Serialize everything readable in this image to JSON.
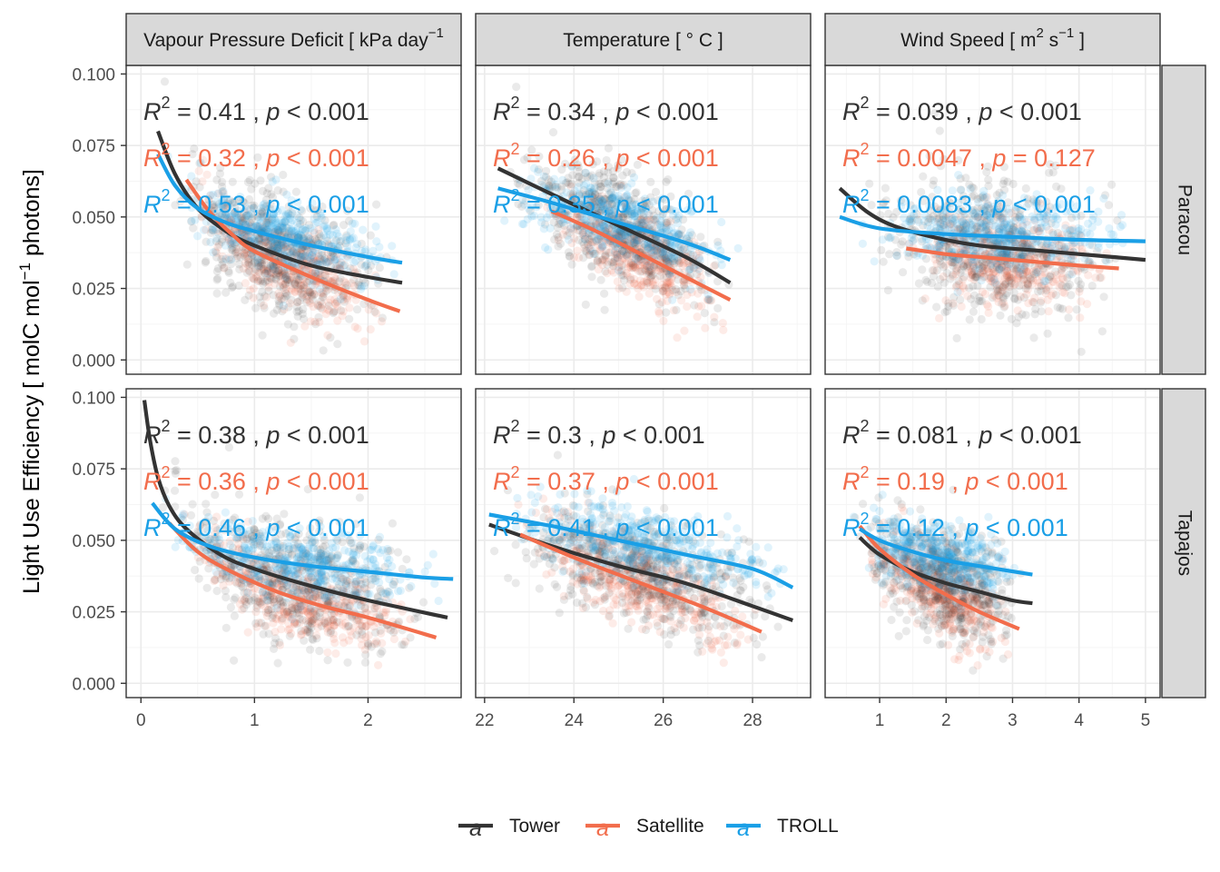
{
  "figure": {
    "ylabel_main": "Light Use Efficiency [ molC mol",
    "ylabel_sup": "−1",
    "ylabel_tail": " photons]",
    "legend": [
      {
        "key": "Tower",
        "label": "Tower",
        "glyph": "a"
      },
      {
        "key": "Satellite",
        "label": "Satellite",
        "glyph": "a"
      },
      {
        "key": "TROLL",
        "label": "TROLL",
        "glyph": "a"
      }
    ]
  },
  "colors": {
    "Tower": "#333333",
    "Satellite": "#f26d4c",
    "TROLL": "#1a9fe6",
    "strip": "#d9d9d9",
    "grid_major": "#ebebeb",
    "grid_minor": "#f5f5f5",
    "border": "#333333",
    "tick_text": "#4d4d4d"
  },
  "columns": [
    {
      "strip_main": "Vapour Pressure Deficit [ kPa day",
      "strip_sup": "−1",
      "strip_tail": "",
      "xlim": [
        -0.13,
        2.82
      ],
      "xticks": [
        0,
        1,
        2
      ],
      "xtick_labels": [
        "0",
        "1",
        "2"
      ],
      "xminor": [
        0.5,
        1.5,
        2.5
      ]
    },
    {
      "strip_main": "Temperature [ ° C ]",
      "strip_sup": "",
      "strip_tail": "",
      "xlim": [
        21.8,
        29.3
      ],
      "xticks": [
        22,
        24,
        26,
        28
      ],
      "xtick_labels": [
        "22",
        "24",
        "26",
        "28"
      ],
      "xminor": [
        23,
        25,
        27,
        29
      ]
    },
    {
      "strip_main": "Wind Speed [ m",
      "strip_sup": "2",
      "strip_tail": " s",
      "strip_sup2": "−1",
      "strip_tail2": " ]",
      "xlim": [
        0.18,
        5.22
      ],
      "xticks": [
        1,
        2,
        3,
        4,
        5
      ],
      "xtick_labels": [
        "1",
        "2",
        "3",
        "4",
        "5"
      ],
      "xminor": [
        0.5,
        1.5,
        2.5,
        3.5,
        4.5
      ]
    }
  ],
  "rows": [
    {
      "strip": "Paracou"
    },
    {
      "strip": "Tapajos"
    }
  ],
  "chart_data": {
    "type": "scatter",
    "facets": "rows = site, columns = driver",
    "ylim": [
      -0.005,
      0.103
    ],
    "yticks": [
      0.0,
      0.025,
      0.05,
      0.075,
      0.1
    ],
    "ytick_labels": [
      "0.000",
      "0.025",
      "0.050",
      "0.075",
      "0.100"
    ],
    "series_names": [
      "Tower",
      "Satellite",
      "TROLL"
    ],
    "panels": [
      {
        "row": 0,
        "col": 0,
        "annotations": [
          {
            "series": "Tower",
            "r2": "0.41",
            "p": "< 0.001"
          },
          {
            "series": "Satellite",
            "r2": "0.32",
            "p": "< 0.001"
          },
          {
            "series": "TROLL",
            "r2": "0.53",
            "p": "< 0.001"
          }
        ],
        "fits": [
          {
            "series": "Tower",
            "x": [
              0.15,
              0.3,
              0.5,
              0.75,
              1.0,
              1.5,
              2.0,
              2.3
            ],
            "y": [
              0.08,
              0.065,
              0.053,
              0.045,
              0.04,
              0.033,
              0.029,
              0.027
            ]
          },
          {
            "series": "Satellite",
            "x": [
              0.4,
              0.6,
              0.8,
              1.0,
              1.5,
              2.0,
              2.28
            ],
            "y": [
              0.063,
              0.052,
              0.044,
              0.038,
              0.029,
              0.021,
              0.017
            ]
          },
          {
            "series": "TROLL",
            "x": [
              0.15,
              0.3,
              0.5,
              0.75,
              1.0,
              1.5,
              2.0,
              2.3
            ],
            "y": [
              0.072,
              0.061,
              0.053,
              0.048,
              0.045,
              0.04,
              0.036,
              0.034
            ]
          }
        ],
        "clouds": [
          {
            "series": "Tower",
            "x": [
              0.15,
              2.3
            ],
            "center": "fit",
            "sd": 0.011
          },
          {
            "series": "Satellite",
            "x": [
              0.3,
              2.3
            ],
            "center": "fit",
            "sd": 0.007
          },
          {
            "series": "TROLL",
            "x": [
              0.15,
              2.35
            ],
            "center": "fit",
            "sd": 0.006
          }
        ]
      },
      {
        "row": 0,
        "col": 1,
        "annotations": [
          {
            "series": "Tower",
            "r2": "0.34",
            "p": "< 0.001"
          },
          {
            "series": "Satellite",
            "r2": "0.26",
            "p": "< 0.001"
          },
          {
            "series": "TROLL",
            "r2": "0.35",
            "p": "< 0.001"
          }
        ],
        "fits": [
          {
            "series": "Tower",
            "x": [
              22.3,
              23.5,
              25.0,
              26.5,
              27.5
            ],
            "y": [
              0.067,
              0.058,
              0.047,
              0.036,
              0.027
            ]
          },
          {
            "series": "Satellite",
            "x": [
              23.5,
              24.5,
              25.5,
              26.5,
              27.5
            ],
            "y": [
              0.052,
              0.045,
              0.037,
              0.029,
              0.021
            ]
          },
          {
            "series": "TROLL",
            "x": [
              22.3,
              23.5,
              25.0,
              26.5,
              27.5
            ],
            "y": [
              0.06,
              0.055,
              0.048,
              0.041,
              0.035
            ]
          }
        ],
        "clouds": [
          {
            "series": "Tower",
            "x": [
              22.3,
              27.7
            ],
            "center": "fit",
            "sd": 0.01
          },
          {
            "series": "Satellite",
            "x": [
              23.2,
              27.6
            ],
            "center": "fit",
            "sd": 0.007
          },
          {
            "series": "TROLL",
            "x": [
              22.3,
              27.8
            ],
            "center": "fit",
            "sd": 0.006
          }
        ]
      },
      {
        "row": 0,
        "col": 2,
        "annotations": [
          {
            "series": "Tower",
            "r2": "0.039",
            "p": "< 0.001"
          },
          {
            "series": "Satellite",
            "r2": "0.0047",
            "p": "= 0.127"
          },
          {
            "series": "TROLL",
            "r2": "0.0083",
            "p": "< 0.001"
          }
        ],
        "fits": [
          {
            "series": "Tower",
            "x": [
              0.4,
              0.8,
              1.2,
              1.8,
              2.5,
              3.5,
              4.5,
              5.0
            ],
            "y": [
              0.06,
              0.052,
              0.047,
              0.043,
              0.04,
              0.038,
              0.036,
              0.035
            ]
          },
          {
            "series": "Satellite",
            "x": [
              1.4,
              2.0,
              2.5,
              3.0,
              3.5,
              4.0,
              4.6
            ],
            "y": [
              0.039,
              0.037,
              0.036,
              0.035,
              0.034,
              0.033,
              0.032
            ]
          },
          {
            "series": "TROLL",
            "x": [
              0.4,
              1.0,
              2.0,
              3.0,
              4.0,
              5.0
            ],
            "y": [
              0.05,
              0.046,
              0.044,
              0.043,
              0.042,
              0.0415
            ]
          }
        ],
        "clouds": [
          {
            "series": "Tower",
            "x": [
              0.6,
              4.8
            ],
            "center": "fit",
            "sd": 0.012
          },
          {
            "series": "Satellite",
            "x": [
              1.3,
              4.6
            ],
            "center": "fit",
            "sd": 0.008
          },
          {
            "series": "TROLL",
            "x": [
              0.5,
              5.0
            ],
            "center": "fit",
            "sd": 0.007
          }
        ]
      },
      {
        "row": 1,
        "col": 0,
        "annotations": [
          {
            "series": "Tower",
            "r2": "0.38",
            "p": "< 0.001"
          },
          {
            "series": "Satellite",
            "r2": "0.36",
            "p": "< 0.001"
          },
          {
            "series": "TROLL",
            "r2": "0.46",
            "p": "< 0.001"
          }
        ],
        "fits": [
          {
            "series": "Tower",
            "x": [
              0.03,
              0.08,
              0.15,
              0.25,
              0.4,
              0.7,
              1.0,
              1.5,
              2.0,
              2.7
            ],
            "y": [
              0.099,
              0.085,
              0.072,
              0.062,
              0.054,
              0.045,
              0.04,
              0.034,
              0.029,
              0.023
            ]
          },
          {
            "series": "Satellite",
            "x": [
              0.25,
              0.5,
              0.8,
              1.2,
              1.6,
              2.0,
              2.6
            ],
            "y": [
              0.056,
              0.046,
              0.039,
              0.032,
              0.027,
              0.023,
              0.016
            ]
          },
          {
            "series": "TROLL",
            "x": [
              0.1,
              0.3,
              0.6,
              1.0,
              1.5,
              2.0,
              2.5,
              2.75
            ],
            "y": [
              0.063,
              0.054,
              0.048,
              0.044,
              0.041,
              0.039,
              0.037,
              0.0365
            ]
          }
        ],
        "clouds": [
          {
            "series": "Tower",
            "x": [
              0.02,
              2.7
            ],
            "center": "fit",
            "sd": 0.011
          },
          {
            "series": "Satellite",
            "x": [
              0.2,
              2.6
            ],
            "center": "fit",
            "sd": 0.007
          },
          {
            "series": "TROLL",
            "x": [
              0.05,
              2.75
            ],
            "center": "fit",
            "sd": 0.006
          }
        ]
      },
      {
        "row": 1,
        "col": 1,
        "annotations": [
          {
            "series": "Tower",
            "r2": "0.3",
            "p": "< 0.001"
          },
          {
            "series": "Satellite",
            "r2": "0.37",
            "p": "< 0.001"
          },
          {
            "series": "TROLL",
            "r2": "0.41",
            "p": "< 0.001"
          }
        ],
        "fits": [
          {
            "series": "Tower",
            "x": [
              22.1,
              23.5,
              25.0,
              26.5,
              28.0,
              28.9
            ],
            "y": [
              0.0555,
              0.048,
              0.041,
              0.035,
              0.027,
              0.022
            ]
          },
          {
            "series": "Satellite",
            "x": [
              22.8,
              24.0,
              25.5,
              27.0,
              28.2
            ],
            "y": [
              0.052,
              0.044,
              0.035,
              0.026,
              0.018
            ]
          },
          {
            "series": "TROLL",
            "x": [
              22.1,
              23.5,
              25.0,
              26.5,
              28.0,
              28.9
            ],
            "y": [
              0.059,
              0.055,
              0.05,
              0.045,
              0.04,
              0.0335
            ]
          }
        ],
        "clouds": [
          {
            "series": "Tower",
            "x": [
              22.1,
              28.9
            ],
            "center": "fit",
            "sd": 0.009
          },
          {
            "series": "Satellite",
            "x": [
              22.6,
              28.3
            ],
            "center": "fit",
            "sd": 0.007
          },
          {
            "series": "TROLL",
            "x": [
              22.1,
              29.0
            ],
            "center": "fit",
            "sd": 0.006
          }
        ]
      },
      {
        "row": 1,
        "col": 2,
        "annotations": [
          {
            "series": "Tower",
            "r2": "0.081",
            "p": "< 0.001"
          },
          {
            "series": "Satellite",
            "r2": "0.19",
            "p": "< 0.001"
          },
          {
            "series": "TROLL",
            "r2": "0.12",
            "p": "< 0.001"
          }
        ],
        "fits": [
          {
            "series": "Tower",
            "x": [
              0.7,
              1.0,
              1.5,
              2.0,
              2.5,
              3.0,
              3.3
            ],
            "y": [
              0.051,
              0.045,
              0.039,
              0.035,
              0.032,
              0.029,
              0.028
            ]
          },
          {
            "series": "Satellite",
            "x": [
              0.7,
              1.0,
              1.5,
              2.0,
              2.5,
              3.1
            ],
            "y": [
              0.055,
              0.047,
              0.038,
              0.031,
              0.025,
              0.019
            ]
          },
          {
            "series": "TROLL",
            "x": [
              0.7,
              1.0,
              1.5,
              2.0,
              2.5,
              3.3
            ],
            "y": [
              0.054,
              0.05,
              0.046,
              0.043,
              0.041,
              0.038
            ]
          }
        ],
        "clouds": [
          {
            "series": "Tower",
            "x": [
              0.6,
              3.3
            ],
            "center": "fit",
            "sd": 0.01
          },
          {
            "series": "Satellite",
            "x": [
              0.7,
              3.1
            ],
            "center": "fit",
            "sd": 0.007
          },
          {
            "series": "TROLL",
            "x": [
              0.5,
              3.3
            ],
            "center": "fit",
            "sd": 0.006
          }
        ]
      }
    ]
  }
}
